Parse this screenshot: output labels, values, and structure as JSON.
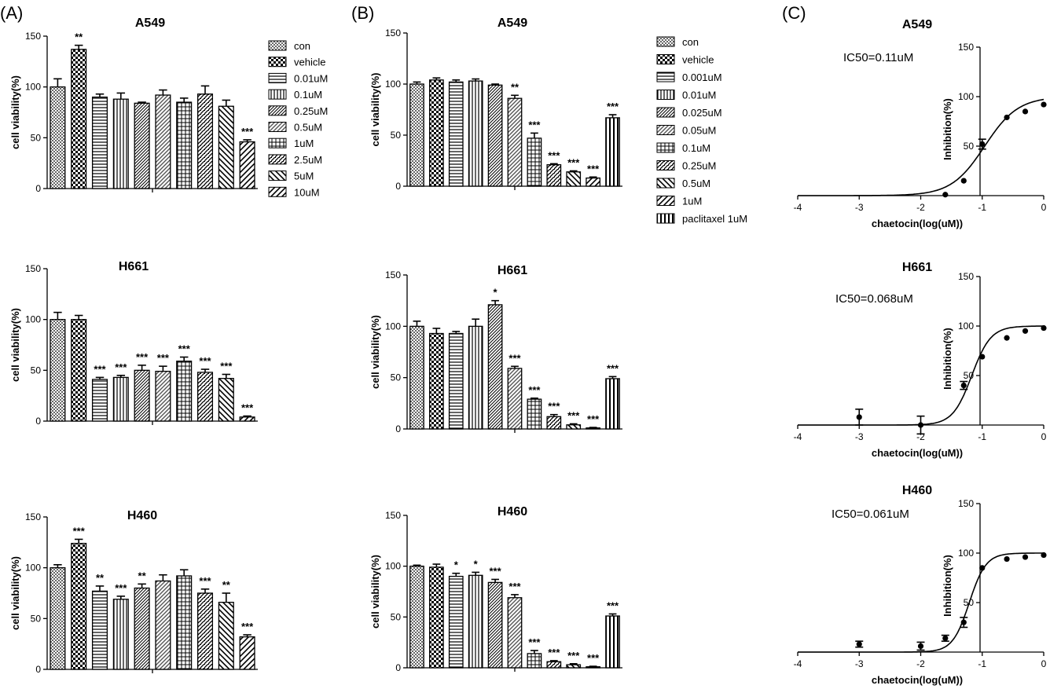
{
  "panels": [
    {
      "label": "(A)"
    },
    {
      "label": "(B)"
    },
    {
      "label": "(C)"
    }
  ],
  "chart_data": [
    {
      "type": "bar",
      "panel": "(A)",
      "title": "A549",
      "ylabel": "cell viability(%)",
      "xlabel": "",
      "ylim": [
        0,
        150
      ],
      "yticks": [
        "0",
        "50",
        "100",
        "150"
      ],
      "legend_position": "right",
      "categories": [
        "con",
        "vehicle",
        "0.01uM",
        "0.1uM",
        "0.25uM",
        "0.5uM",
        "1uM",
        "2.5uM",
        "5uM",
        "10uM"
      ],
      "values": [
        100,
        137,
        90,
        88,
        84,
        92,
        85,
        93,
        81,
        46
      ],
      "errors": [
        8,
        4,
        3,
        6,
        1,
        5,
        4,
        8,
        6,
        2
      ],
      "significance": [
        "",
        "**",
        "",
        "",
        "",
        "",
        "",
        "",
        "",
        "***"
      ]
    },
    {
      "type": "bar",
      "panel": "(A)",
      "title": "H661",
      "ylabel": "cell viability(%)",
      "xlabel": "",
      "ylim": [
        0,
        150
      ],
      "yticks": [
        "0",
        "50",
        "100",
        "150"
      ],
      "categories": [
        "con",
        "vehicle",
        "0.01uM",
        "0.1uM",
        "0.25uM",
        "0.5uM",
        "1uM",
        "2.5uM",
        "5uM",
        "10uM"
      ],
      "values": [
        100,
        100,
        41,
        43,
        50,
        49,
        59,
        48,
        42,
        4
      ],
      "errors": [
        7,
        4,
        2,
        2,
        5,
        5,
        4,
        3,
        4,
        1
      ],
      "significance": [
        "",
        "",
        "***",
        "***",
        "***",
        "***",
        "***",
        "***",
        "***",
        "***"
      ]
    },
    {
      "type": "bar",
      "panel": "(A)",
      "title": "H460",
      "ylabel": "cell viability(%)",
      "xlabel": "",
      "ylim": [
        0,
        150
      ],
      "yticks": [
        "0",
        "50",
        "100",
        "150"
      ],
      "categories": [
        "con",
        "vehicle",
        "0.01uM",
        "0.1uM",
        "0.25uM",
        "0.5uM",
        "1uM",
        "2.5uM",
        "5uM",
        "10uM"
      ],
      "values": [
        100,
        124,
        77,
        69,
        80,
        87,
        92,
        75,
        66,
        32
      ],
      "errors": [
        3,
        4,
        5,
        3,
        4,
        6,
        6,
        4,
        9,
        2
      ],
      "significance": [
        "",
        "***",
        "**",
        "***",
        "**",
        "",
        "",
        "***",
        "**",
        "***"
      ]
    },
    {
      "type": "bar",
      "panel": "(B)",
      "title": "A549",
      "ylabel": "cell viability(%)",
      "xlabel": "",
      "ylim": [
        0,
        150
      ],
      "yticks": [
        "0",
        "50",
        "100",
        "150"
      ],
      "legend_position": "right",
      "categories": [
        "con",
        "vehicle",
        "0.001uM",
        "0.01uM",
        "0.025uM",
        "0.05uM",
        "0.1uM",
        "0.25uM",
        "0.5uM",
        "1uM",
        "paclitaxel 1uM"
      ],
      "values": [
        100,
        104,
        102,
        103,
        99,
        86,
        47,
        21,
        14,
        8,
        67
      ],
      "errors": [
        2,
        2,
        2,
        2,
        1,
        3,
        5,
        1,
        1,
        1,
        3
      ],
      "significance": [
        "",
        "",
        "",
        "",
        "",
        "**",
        "***",
        "***",
        "***",
        "***",
        "***"
      ]
    },
    {
      "type": "bar",
      "panel": "(B)",
      "title": "H661",
      "ylabel": "cell viability(%)",
      "xlabel": "",
      "ylim": [
        0,
        150
      ],
      "yticks": [
        "0",
        "50",
        "100",
        "150"
      ],
      "categories": [
        "con",
        "vehicle",
        "0.001uM",
        "0.01uM",
        "0.025uM",
        "0.05uM",
        "0.1uM",
        "0.25uM",
        "0.5uM",
        "1uM",
        "paclitaxel 1uM"
      ],
      "values": [
        100,
        93,
        93,
        100,
        121,
        59,
        29,
        12,
        4,
        1,
        49
      ],
      "errors": [
        5,
        5,
        2,
        7,
        4,
        2,
        1,
        2,
        1,
        0.5,
        2
      ],
      "significance": [
        "",
        "",
        "",
        "",
        "*",
        "***",
        "***",
        "***",
        "***",
        "***",
        "***"
      ]
    },
    {
      "type": "bar",
      "panel": "(B)",
      "title": "H460",
      "ylabel": "cell viability(%)",
      "xlabel": "",
      "ylim": [
        0,
        150
      ],
      "yticks": [
        "0",
        "50",
        "100",
        "150"
      ],
      "categories": [
        "con",
        "vehicle",
        "0.001uM",
        "0.01uM",
        "0.025uM",
        "0.05uM",
        "0.1uM",
        "0.25uM",
        "0.5uM",
        "1uM",
        "paclitaxel 1uM"
      ],
      "values": [
        100,
        99,
        90,
        91,
        84,
        69,
        14,
        6,
        3,
        1,
        51
      ],
      "errors": [
        1,
        3,
        3,
        3,
        3,
        3,
        3,
        1,
        1,
        0.5,
        2
      ],
      "significance": [
        "",
        "",
        "*",
        "*",
        "***",
        "***",
        "***",
        "***",
        "***",
        "***",
        "***"
      ]
    },
    {
      "type": "scatter",
      "panel": "(C)",
      "title": "A549",
      "annotation": "IC50=0.11uM",
      "xlabel": "chaetocin(log(uM))",
      "ylabel": "Inhibition(%)",
      "xlim": [
        -4,
        0
      ],
      "ylim": [
        0,
        150
      ],
      "xticks": [
        "-4",
        "-3",
        "-2",
        "-1",
        "0"
      ],
      "yticks": [
        "50",
        "100",
        "150"
      ],
      "points": [
        {
          "x": -1.6,
          "y": 1,
          "err": 0
        },
        {
          "x": -1.3,
          "y": 15,
          "err": 0
        },
        {
          "x": -1.0,
          "y": 52,
          "err": 5
        },
        {
          "x": -0.6,
          "y": 79,
          "err": 0
        },
        {
          "x": -0.3,
          "y": 85,
          "err": 0
        },
        {
          "x": 0.0,
          "y": 92,
          "err": 0
        }
      ],
      "fit": {
        "bottom": 0,
        "top": 100,
        "logIC50": -0.96,
        "hill": 1.6
      }
    },
    {
      "type": "scatter",
      "panel": "(C)",
      "title": "H661",
      "annotation": "IC50=0.068uM",
      "xlabel": "chaetocin(log(uM))",
      "ylabel": "Inhibition(%)",
      "xlim": [
        -4,
        0
      ],
      "ylim": [
        0,
        150
      ],
      "xticks": [
        "-4",
        "-3",
        "-2",
        "-1",
        "0"
      ],
      "yticks": [
        "50",
        "100",
        "150"
      ],
      "points": [
        {
          "x": -3.0,
          "y": 8,
          "err": 8
        },
        {
          "x": -2.0,
          "y": 0,
          "err": 9
        },
        {
          "x": -1.3,
          "y": 40,
          "err": 4
        },
        {
          "x": -1.0,
          "y": 69,
          "err": 0
        },
        {
          "x": -0.6,
          "y": 88,
          "err": 0
        },
        {
          "x": -0.3,
          "y": 95,
          "err": 0
        },
        {
          "x": 0.0,
          "y": 98,
          "err": 0
        }
      ],
      "fit": {
        "bottom": 0,
        "top": 100,
        "logIC50": -1.17,
        "hill": 2.8
      }
    },
    {
      "type": "scatter",
      "panel": "(C)",
      "title": "H460",
      "annotation": "IC50=0.061uM",
      "xlabel": "chaetocin(log(uM))",
      "ylabel": "Inhibition(%)",
      "xlim": [
        -4,
        0
      ],
      "ylim": [
        0,
        150
      ],
      "xticks": [
        "-4",
        "-3",
        "-2",
        "-1",
        "0"
      ],
      "yticks": [
        "50",
        "100",
        "150"
      ],
      "points": [
        {
          "x": -3.0,
          "y": 8,
          "err": 3
        },
        {
          "x": -2.0,
          "y": 6,
          "err": 4
        },
        {
          "x": -1.6,
          "y": 14,
          "err": 3
        },
        {
          "x": -1.3,
          "y": 30,
          "err": 5
        },
        {
          "x": -1.0,
          "y": 85,
          "err": 0
        },
        {
          "x": -0.6,
          "y": 94,
          "err": 0
        },
        {
          "x": -0.3,
          "y": 96,
          "err": 0
        },
        {
          "x": 0.0,
          "y": 98,
          "err": 0
        }
      ],
      "fit": {
        "bottom": 0,
        "top": 100,
        "logIC50": -1.21,
        "hill": 3.2
      }
    }
  ]
}
